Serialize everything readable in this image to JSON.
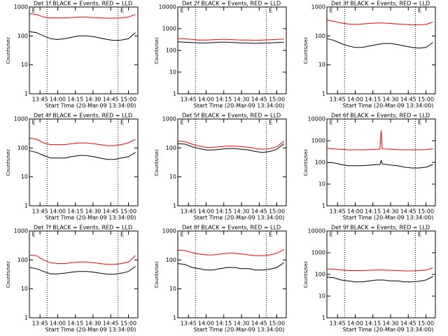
{
  "chart_data": [
    {
      "type": "line",
      "title": "Det 1f BLACK = Events, RED = LLD",
      "ylabel": "Counts/sec",
      "xlabel": "Start Time (20-Mar-09 13:34:00)",
      "ylog": true,
      "ylim": [
        1,
        1000
      ],
      "yticks": [
        1,
        10,
        100,
        1000
      ],
      "xlim": [
        "13:36",
        "15:08"
      ],
      "xticks": [
        "13:45",
        "14:00",
        "14:15",
        "14:30",
        "14:45",
        "15:00"
      ],
      "vlines": [
        "13:51",
        "14:51"
      ],
      "annotations": [
        {
          "text": "E",
          "x": "13:37"
        },
        {
          "text": "E",
          "x": "14:52"
        }
      ],
      "x": [
        "13:36",
        "13:42",
        "13:48",
        "13:54",
        "14:00",
        "14:06",
        "14:12",
        "14:18",
        "14:24",
        "14:30",
        "14:36",
        "14:42",
        "14:48",
        "14:54",
        "15:00",
        "15:06"
      ],
      "series": [
        {
          "color": "#000000",
          "values": [
            140,
            130,
            100,
            80,
            75,
            80,
            90,
            100,
            100,
            95,
            85,
            75,
            70,
            72,
            80,
            130
          ]
        },
        {
          "color": "#ff0000",
          "values": [
            600,
            550,
            450,
            420,
            420,
            420,
            430,
            450,
            450,
            430,
            420,
            410,
            410,
            420,
            450,
            550
          ]
        }
      ]
    },
    {
      "type": "line",
      "title": "Det 2f BLACK = Events, RED = LLD",
      "ylabel": "Counts/sec",
      "xlabel": "Start Time (20-Mar-09 13:34:00)",
      "ylog": true,
      "ylim": [
        1,
        10000
      ],
      "yticks": [
        1,
        10,
        100,
        1000,
        10000
      ],
      "xlim": [
        "13:36",
        "15:08"
      ],
      "xticks": [
        "13:45",
        "14:00",
        "14:15",
        "14:30",
        "14:45",
        "15:00"
      ],
      "vlines": [
        "13:51",
        "14:51"
      ],
      "annotations": [
        {
          "text": "E",
          "x": "13:37"
        },
        {
          "text": "E",
          "x": "14:52"
        }
      ],
      "x": [
        "13:36",
        "13:42",
        "13:48",
        "13:54",
        "14:00",
        "14:06",
        "14:12",
        "14:18",
        "14:24",
        "14:30",
        "14:36",
        "14:42",
        "14:48",
        "14:54",
        "15:00",
        "15:06"
      ],
      "series": [
        {
          "color": "#000000",
          "values": [
            250,
            240,
            230,
            220,
            220,
            230,
            240,
            240,
            230,
            220,
            220,
            210,
            220,
            220,
            230,
            240
          ]
        },
        {
          "color": "#ff0000",
          "values": [
            350,
            340,
            320,
            300,
            300,
            310,
            320,
            320,
            310,
            300,
            300,
            290,
            300,
            310,
            320,
            330
          ]
        }
      ]
    },
    {
      "type": "line",
      "title": "Det 3f BLACK = Events, RED = LLD",
      "ylabel": "Counts/sec",
      "xlabel": "Start Time (20-Mar-09 13:34:00)",
      "ylog": true,
      "ylim": [
        1,
        1000
      ],
      "yticks": [
        1,
        10,
        100,
        1000
      ],
      "xlim": [
        "13:36",
        "15:08"
      ],
      "xticks": [
        "13:45",
        "14:00",
        "14:15",
        "14:30",
        "14:45",
        "15:00"
      ],
      "vlines": [
        "13:51",
        "14:51"
      ],
      "annotations": [
        {
          "text": "E",
          "x": "13:37"
        },
        {
          "text": "E",
          "x": "14:52"
        }
      ],
      "x": [
        "13:36",
        "13:42",
        "13:48",
        "13:54",
        "14:00",
        "14:06",
        "14:12",
        "14:18",
        "14:24",
        "14:30",
        "14:36",
        "14:42",
        "14:48",
        "14:54",
        "15:00",
        "15:06"
      ],
      "series": [
        {
          "color": "#000000",
          "values": [
            80,
            70,
            55,
            45,
            40,
            40,
            45,
            50,
            55,
            55,
            50,
            45,
            40,
            38,
            40,
            60
          ]
        },
        {
          "color": "#ff0000",
          "values": [
            350,
            320,
            280,
            260,
            250,
            260,
            270,
            280,
            280,
            270,
            260,
            250,
            240,
            240,
            250,
            300
          ]
        }
      ]
    },
    {
      "type": "line",
      "title": "Det 4f BLACK = Events, RED = LLD",
      "ylabel": "Counts/sec",
      "xlabel": "Start Time (20-Mar-09 13:34:00)",
      "ylog": true,
      "ylim": [
        1,
        1000
      ],
      "yticks": [
        1,
        10,
        100,
        1000
      ],
      "xlim": [
        "13:36",
        "15:08"
      ],
      "xticks": [
        "13:45",
        "14:00",
        "14:15",
        "14:30",
        "14:45",
        "15:00"
      ],
      "vlines": [
        "13:51",
        "14:51"
      ],
      "annotations": [
        {
          "text": "E",
          "x": "13:37"
        },
        {
          "text": "E",
          "x": "14:52"
        }
      ],
      "x": [
        "13:36",
        "13:42",
        "13:48",
        "13:54",
        "14:00",
        "14:06",
        "14:12",
        "14:18",
        "14:24",
        "14:30",
        "14:36",
        "14:42",
        "14:48",
        "14:54",
        "15:00",
        "15:06"
      ],
      "series": [
        {
          "color": "#000000",
          "values": [
            80,
            70,
            55,
            45,
            45,
            45,
            50,
            55,
            55,
            50,
            45,
            40,
            40,
            45,
            50,
            70
          ]
        },
        {
          "color": "#ff0000",
          "values": [
            220,
            200,
            150,
            130,
            130,
            130,
            140,
            150,
            150,
            140,
            130,
            120,
            120,
            130,
            150,
            200
          ]
        }
      ]
    },
    {
      "type": "line",
      "title": "Det 5f BLACK = Events, RED = LLD",
      "ylabel": "Counts/sec",
      "xlabel": "Start Time (20-Mar-09 13:34:00)",
      "ylog": true,
      "ylim": [
        1,
        1000
      ],
      "yticks": [
        1,
        10,
        100,
        1000
      ],
      "xlim": [
        "13:36",
        "15:08"
      ],
      "xticks": [
        "13:45",
        "14:00",
        "14:15",
        "14:30",
        "14:45",
        "15:00"
      ],
      "vlines": [
        "13:51",
        "14:51"
      ],
      "annotations": [
        {
          "text": "E",
          "x": "13:37"
        },
        {
          "text": "E",
          "x": "14:52"
        }
      ],
      "x": [
        "13:36",
        "13:42",
        "13:48",
        "13:54",
        "14:00",
        "14:06",
        "14:12",
        "14:18",
        "14:24",
        "14:30",
        "14:36",
        "14:42",
        "14:48",
        "14:54",
        "15:00",
        "15:06"
      ],
      "series": [
        {
          "color": "#000000",
          "values": [
            140,
            135,
            110,
            95,
            85,
            85,
            90,
            95,
            95,
            90,
            85,
            75,
            70,
            75,
            90,
            140
          ]
        },
        {
          "color": "#ff0000",
          "values": [
            170,
            165,
            135,
            115,
            105,
            105,
            110,
            115,
            115,
            110,
            105,
            95,
            90,
            95,
            110,
            170
          ]
        }
      ]
    },
    {
      "type": "line",
      "title": "Det 6f BLACK = Events, RED = LLD",
      "ylabel": "Counts/sec",
      "xlabel": "Start Time (20-Mar-09 13:34:00)",
      "ylog": true,
      "ylim": [
        1,
        10000
      ],
      "yticks": [
        1,
        10,
        100,
        1000,
        10000
      ],
      "xlim": [
        "13:36",
        "15:08"
      ],
      "xticks": [
        "13:45",
        "14:00",
        "14:15",
        "14:30",
        "14:45",
        "15:00"
      ],
      "vlines": [
        "13:51",
        "14:51"
      ],
      "annotations": [
        {
          "text": "E",
          "x": "13:37"
        },
        {
          "text": "E",
          "x": "14:52"
        }
      ],
      "x": [
        "13:36",
        "13:42",
        "13:48",
        "13:54",
        "14:00",
        "14:06",
        "14:12",
        "14:18",
        "14:21",
        "14:22",
        "14:23",
        "14:30",
        "14:36",
        "14:42",
        "14:48",
        "14:54",
        "15:00",
        "15:06"
      ],
      "series": [
        {
          "color": "#000000",
          "values": [
            100,
            95,
            80,
            70,
            70,
            70,
            75,
            78,
            80,
            120,
            85,
            75,
            70,
            60,
            55,
            55,
            60,
            80
          ]
        },
        {
          "color": "#ff0000",
          "values": [
            450,
            420,
            400,
            380,
            380,
            380,
            390,
            400,
            400,
            3000,
            420,
            400,
            390,
            380,
            380,
            380,
            390,
            430
          ]
        }
      ]
    },
    {
      "type": "line",
      "title": "Det 7f BLACK = Events, RED = LLD",
      "ylabel": "Counts/sec",
      "xlabel": "Start Time (20-Mar-09 13:34:00)",
      "ylog": true,
      "ylim": [
        1,
        1000
      ],
      "yticks": [
        1,
        10,
        100,
        1000
      ],
      "xlim": [
        "13:36",
        "15:08"
      ],
      "xticks": [
        "13:45",
        "14:00",
        "14:15",
        "14:30",
        "14:45",
        "15:00"
      ],
      "vlines": [
        "13:51",
        "14:51"
      ],
      "annotations": [
        {
          "text": "E",
          "x": "13:37"
        },
        {
          "text": "E",
          "x": "14:52"
        }
      ],
      "x": [
        "13:36",
        "13:42",
        "13:48",
        "13:54",
        "14:00",
        "14:06",
        "14:12",
        "14:18",
        "14:24",
        "14:30",
        "14:36",
        "14:42",
        "14:48",
        "14:54",
        "15:00",
        "15:06"
      ],
      "series": [
        {
          "color": "#000000",
          "values": [
            55,
            50,
            40,
            33,
            33,
            35,
            38,
            40,
            40,
            38,
            35,
            32,
            32,
            35,
            40,
            60
          ]
        },
        {
          "color": "#ff0000",
          "values": [
            150,
            140,
            100,
            80,
            75,
            75,
            80,
            85,
            85,
            80,
            75,
            70,
            70,
            75,
            85,
            140
          ]
        }
      ]
    },
    {
      "type": "line",
      "title": "Det 8f BLACK = Events, RED = LLD",
      "ylabel": "Counts/sec",
      "xlabel": "Start Time (20-Mar-09 13:34:00)",
      "ylog": true,
      "ylim": [
        1,
        1000
      ],
      "yticks": [
        1,
        10,
        100,
        1000
      ],
      "xlim": [
        "13:36",
        "15:08"
      ],
      "xticks": [
        "13:45",
        "14:00",
        "14:15",
        "14:30",
        "14:45",
        "15:00"
      ],
      "vlines": [
        "13:51",
        "14:51"
      ],
      "annotations": [
        {
          "text": "E",
          "x": "13:37"
        },
        {
          "text": "E",
          "x": "14:52"
        }
      ],
      "x": [
        "13:36",
        "13:42",
        "13:48",
        "13:54",
        "14:00",
        "14:06",
        "14:12",
        "14:18",
        "14:24",
        "14:30",
        "14:36",
        "14:42",
        "14:48",
        "14:54",
        "15:00",
        "15:06"
      ],
      "series": [
        {
          "color": "#000000",
          "values": [
            75,
            70,
            55,
            50,
            45,
            45,
            50,
            55,
            55,
            50,
            50,
            45,
            45,
            48,
            55,
            80
          ]
        },
        {
          "color": "#ff0000",
          "values": [
            220,
            210,
            180,
            160,
            150,
            150,
            160,
            170,
            170,
            160,
            150,
            140,
            140,
            150,
            170,
            230
          ]
        }
      ]
    },
    {
      "type": "line",
      "title": "Det 9f BLACK = Events, RED = LLD",
      "ylabel": "Counts/sec",
      "xlabel": "Start Time (20-Mar-09 13:34:00)",
      "ylog": true,
      "ylim": [
        1,
        10000
      ],
      "yticks": [
        1,
        10,
        100,
        1000,
        10000
      ],
      "xlim": [
        "13:36",
        "15:08"
      ],
      "xticks": [
        "13:45",
        "14:00",
        "14:15",
        "14:30",
        "14:45",
        "15:00"
      ],
      "vlines": [
        "13:51",
        "14:51"
      ],
      "annotations": [
        {
          "text": "E",
          "x": "13:37"
        },
        {
          "text": "E",
          "x": "14:52"
        }
      ],
      "x": [
        "13:36",
        "13:42",
        "13:48",
        "13:54",
        "14:00",
        "14:06",
        "14:12",
        "14:18",
        "14:24",
        "14:30",
        "14:36",
        "14:42",
        "14:48",
        "14:54",
        "15:00",
        "15:06"
      ],
      "series": [
        {
          "color": "#000000",
          "values": [
            75,
            70,
            55,
            50,
            45,
            45,
            50,
            55,
            55,
            50,
            50,
            45,
            45,
            48,
            55,
            80
          ]
        },
        {
          "color": "#ff0000",
          "values": [
            180,
            175,
            160,
            150,
            150,
            150,
            155,
            160,
            160,
            155,
            150,
            145,
            145,
            150,
            160,
            200
          ]
        }
      ]
    }
  ]
}
